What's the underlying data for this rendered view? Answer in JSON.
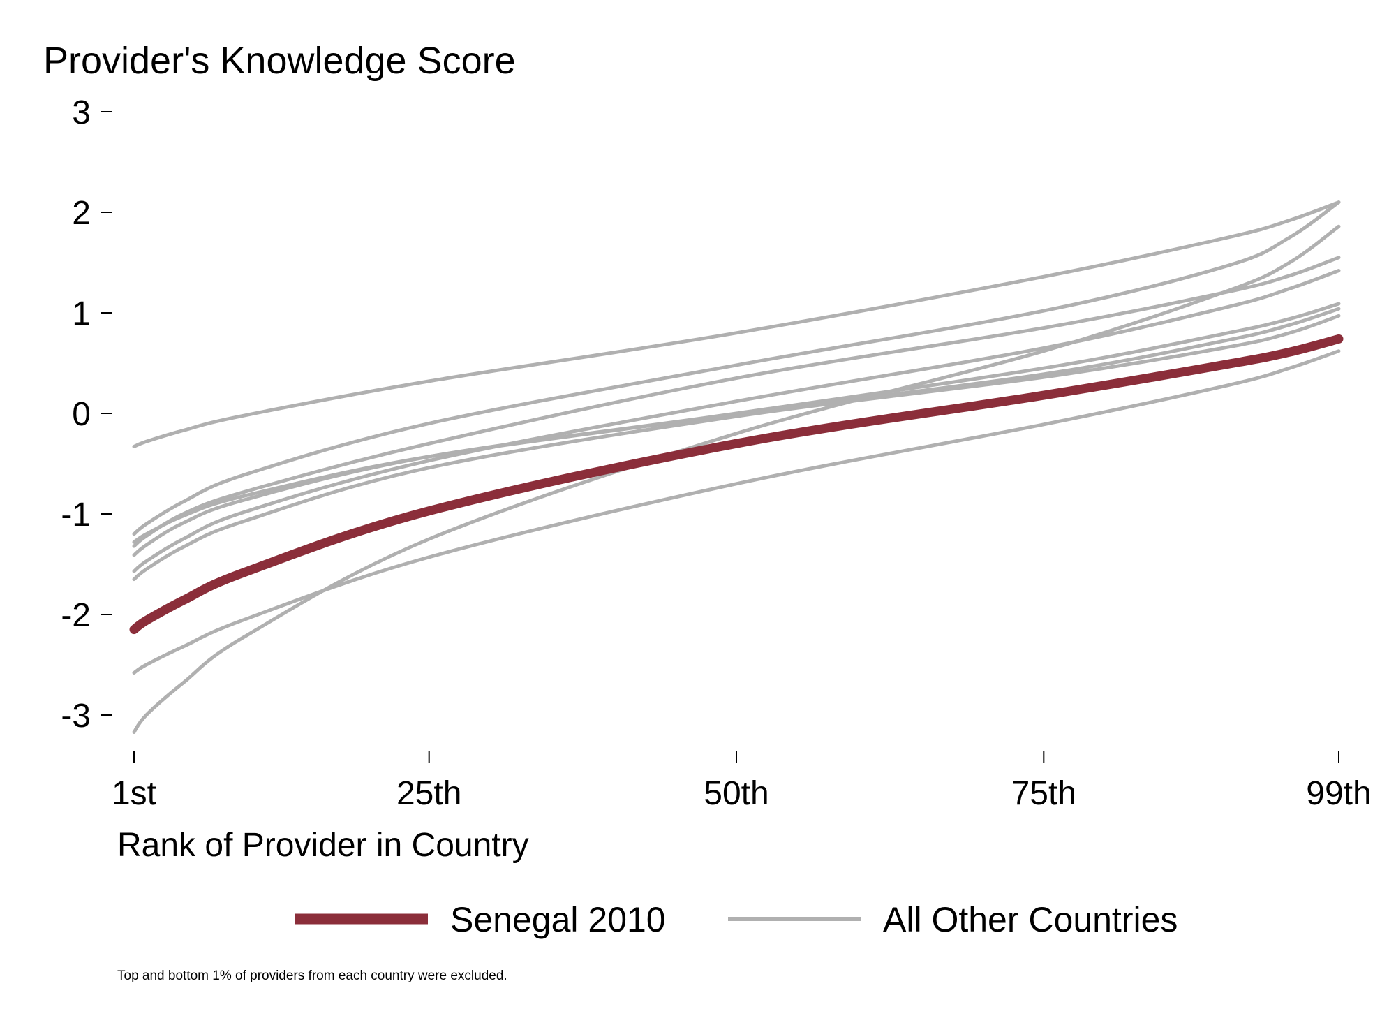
{
  "chart_data": {
    "type": "line",
    "ylabel": "Provider's Knowledge Score",
    "xlabel": "Rank of Provider in Country",
    "note": "Top and bottom 1% of providers from each country were excluded.",
    "x_ticks": [
      {
        "value": 1,
        "label": "1st"
      },
      {
        "value": 25,
        "label": "25th"
      },
      {
        "value": 50,
        "label": "50th"
      },
      {
        "value": 75,
        "label": "75th"
      },
      {
        "value": 99,
        "label": "99th"
      }
    ],
    "y_ticks": [
      {
        "value": 3,
        "label": "3"
      },
      {
        "value": 2,
        "label": "2"
      },
      {
        "value": 1,
        "label": "1"
      },
      {
        "value": 0,
        "label": "0"
      },
      {
        "value": -1,
        "label": "-1"
      },
      {
        "value": -2,
        "label": "-2"
      },
      {
        "value": -3,
        "label": "-3"
      }
    ],
    "xlim": [
      1,
      99
    ],
    "ylim": [
      -3.3,
      3.1
    ],
    "grid": false,
    "legend_position": "bottom",
    "highlight_color": "#8b2e3a",
    "other_color": "#b0b0b0",
    "legend": [
      {
        "label": "Senegal 2010",
        "color": "#8b2e3a",
        "role": "highlight"
      },
      {
        "label": "All Other Countries",
        "color": "#b0b0b0",
        "role": "other"
      }
    ],
    "x": [
      1,
      2,
      5,
      10,
      25,
      50,
      75,
      90,
      95,
      99
    ],
    "series": [
      {
        "role": "other",
        "values": [
          -0.33,
          -0.28,
          -0.17,
          -0.02,
          0.32,
          0.8,
          1.36,
          1.75,
          1.92,
          2.1
        ]
      },
      {
        "role": "other",
        "values": [
          -1.2,
          -1.1,
          -0.88,
          -0.61,
          -0.1,
          0.48,
          1.02,
          1.47,
          1.75,
          2.1
        ]
      },
      {
        "role": "other",
        "values": [
          -3.17,
          -3.0,
          -2.68,
          -2.22,
          -1.25,
          -0.2,
          0.62,
          1.22,
          1.5,
          1.86
        ]
      },
      {
        "role": "other",
        "values": [
          -1.32,
          -1.22,
          -1.0,
          -0.78,
          -0.3,
          0.35,
          0.85,
          1.21,
          1.37,
          1.55
        ]
      },
      {
        "role": "other",
        "values": [
          -1.57,
          -1.47,
          -1.25,
          -0.98,
          -0.47,
          0.12,
          0.65,
          1.06,
          1.24,
          1.42
        ]
      },
      {
        "role": "other",
        "values": [
          -1.41,
          -1.31,
          -1.09,
          -0.86,
          -0.43,
          0.0,
          0.45,
          0.8,
          0.94,
          1.09
        ]
      },
      {
        "role": "other",
        "values": [
          -1.28,
          -1.2,
          -1.02,
          -0.82,
          -0.43,
          -0.01,
          0.39,
          0.73,
          0.88,
          1.04
        ]
      },
      {
        "role": "other",
        "values": [
          -1.65,
          -1.55,
          -1.33,
          -1.07,
          -0.54,
          -0.03,
          0.36,
          0.66,
          0.8,
          0.97
        ]
      },
      {
        "role": "other",
        "values": [
          -2.58,
          -2.5,
          -2.32,
          -2.05,
          -1.43,
          -0.7,
          -0.11,
          0.28,
          0.45,
          0.62
        ]
      },
      {
        "role": "highlight",
        "values": [
          -2.15,
          -2.06,
          -1.86,
          -1.58,
          -0.97,
          -0.3,
          0.18,
          0.49,
          0.61,
          0.74
        ]
      }
    ]
  }
}
